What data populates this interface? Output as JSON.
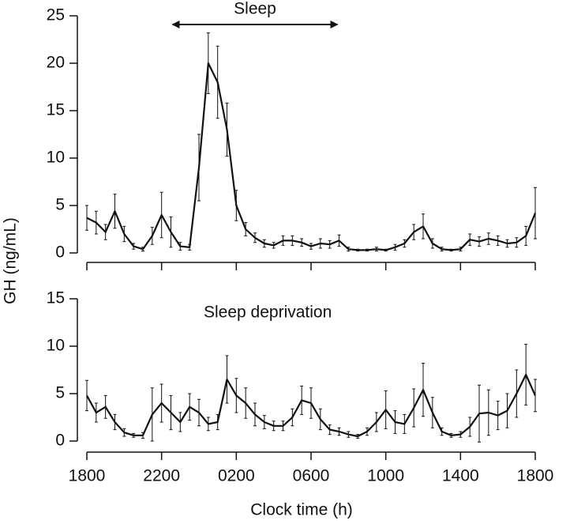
{
  "y_label": "GH (ng/mL)",
  "x_label": "Clock time (h)",
  "chart_data": [
    {
      "type": "line",
      "annotation": {
        "text": "Sleep",
        "x": [
          4.5,
          13.5
        ]
      },
      "xlim": [
        0,
        24
      ],
      "xticks": [
        0,
        4,
        8,
        12,
        16,
        20,
        24
      ],
      "ylim": [
        0,
        25
      ],
      "yticks": [
        0,
        5,
        10,
        15,
        20,
        25
      ],
      "x": [
        0,
        0.5,
        1,
        1.5,
        2,
        2.5,
        3,
        3.5,
        4,
        4.5,
        5,
        5.5,
        6,
        6.5,
        7,
        7.5,
        8,
        8.5,
        9,
        9.5,
        10,
        10.5,
        11,
        11.5,
        12,
        12.5,
        13,
        13.5,
        14,
        14.5,
        15,
        15.5,
        16,
        16.5,
        17,
        17.5,
        18,
        18.5,
        19,
        19.5,
        20,
        20.5,
        21,
        21.5,
        22,
        22.5,
        23,
        23.5,
        24
      ],
      "series": [
        {
          "color": "#111111",
          "values": [
            3.7,
            3.2,
            2.2,
            4.4,
            2.0,
            0.7,
            0.4,
            1.8,
            4.0,
            2.2,
            0.7,
            0.6,
            9,
            20,
            18,
            13,
            5,
            2.5,
            1.6,
            1.0,
            0.8,
            1.3,
            1.3,
            1.1,
            0.7,
            1.0,
            0.9,
            1.3,
            0.4,
            0.3,
            0.3,
            0.4,
            0.3,
            0.6,
            1.0,
            2.2,
            2.8,
            1.0,
            0.4,
            0.3,
            0.4,
            1.4,
            1.2,
            1.5,
            1.3,
            1.0,
            1.1,
            1.8,
            4.2
          ],
          "errors": [
            1.3,
            1.2,
            0.8,
            1.8,
            0.8,
            0.3,
            0.2,
            0.9,
            2.4,
            1.6,
            0.4,
            0.3,
            3.5,
            3.2,
            3.8,
            2.8,
            1.6,
            0.7,
            0.5,
            0.4,
            0.3,
            0.5,
            0.5,
            0.4,
            0.3,
            0.5,
            0.4,
            0.6,
            0.2,
            0.1,
            0.1,
            0.2,
            0.1,
            0.3,
            0.4,
            0.8,
            1.3,
            0.5,
            0.2,
            0.1,
            0.2,
            0.6,
            0.5,
            0.6,
            0.5,
            0.4,
            0.5,
            1.0,
            2.7
          ]
        }
      ]
    },
    {
      "type": "line",
      "annotation": {
        "text": "Sleep deprivation"
      },
      "xlim": [
        0,
        24
      ],
      "xticks": [
        {
          "value": 0,
          "label": "1800"
        },
        {
          "value": 4,
          "label": "2200"
        },
        {
          "value": 8,
          "label": "0200"
        },
        {
          "value": 12,
          "label": "0600"
        },
        {
          "value": 16,
          "label": "1000"
        },
        {
          "value": 20,
          "label": "1400"
        },
        {
          "value": 24,
          "label": "1800"
        }
      ],
      "ylim": [
        0,
        15
      ],
      "yticks": [
        0,
        5,
        10,
        15
      ],
      "x": [
        0,
        0.5,
        1,
        1.5,
        2,
        2.5,
        3,
        3.5,
        4,
        4.5,
        5,
        5.5,
        6,
        6.5,
        7,
        7.5,
        8,
        8.5,
        9,
        9.5,
        10,
        10.5,
        11,
        11.5,
        12,
        12.5,
        13,
        13.5,
        14,
        14.5,
        15,
        15.5,
        16,
        16.5,
        17,
        17.5,
        18,
        18.5,
        19,
        19.5,
        20,
        20.5,
        21,
        21.5,
        22,
        22.5,
        23,
        23.5,
        24
      ],
      "series": [
        {
          "color": "#111111",
          "values": [
            4.8,
            3.0,
            3.6,
            2.0,
            0.9,
            0.6,
            0.6,
            2.8,
            4.0,
            3.0,
            2.0,
            3.6,
            3.0,
            1.8,
            2.0,
            6.5,
            4.8,
            4.0,
            2.8,
            2.0,
            1.6,
            1.6,
            2.5,
            4.3,
            4.0,
            2.3,
            1.2,
            1.0,
            0.7,
            0.5,
            1.0,
            2.0,
            3.3,
            2.0,
            1.8,
            3.5,
            5.4,
            3.0,
            1.0,
            0.6,
            0.7,
            1.5,
            2.9,
            3.0,
            2.7,
            3.2,
            5.0,
            7.0,
            4.8
          ],
          "errors": [
            1.6,
            1.0,
            1.2,
            0.8,
            0.4,
            0.2,
            0.3,
            2.8,
            2.0,
            1.8,
            1.0,
            1.4,
            1.4,
            0.7,
            0.8,
            2.5,
            1.8,
            1.6,
            1.2,
            0.7,
            0.5,
            0.5,
            0.9,
            1.5,
            1.6,
            1.1,
            0.5,
            0.4,
            0.3,
            0.2,
            0.4,
            1.0,
            2.0,
            1.2,
            1.0,
            2.0,
            2.8,
            1.6,
            0.4,
            0.2,
            0.3,
            1.0,
            3.0,
            2.4,
            1.5,
            1.8,
            2.5,
            3.2,
            1.7
          ]
        }
      ]
    }
  ]
}
